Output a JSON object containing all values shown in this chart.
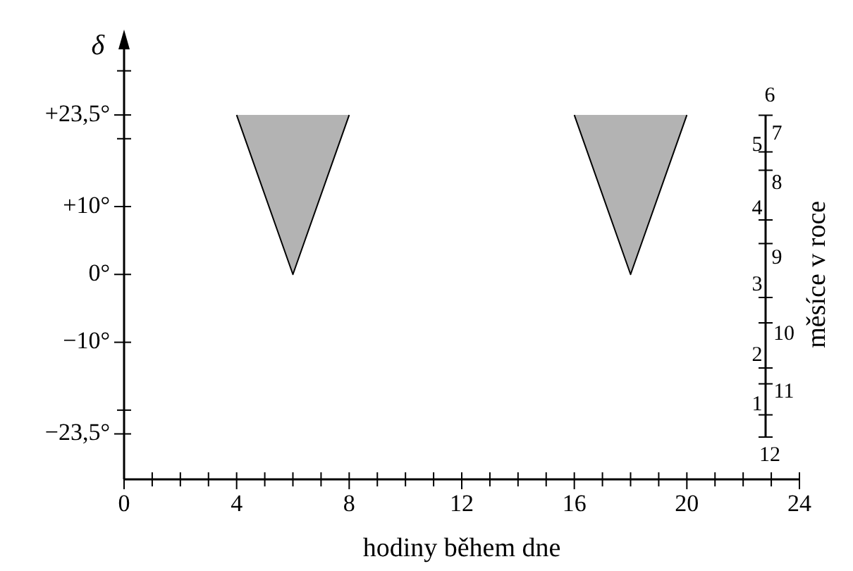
{
  "chart_data": {
    "type": "area",
    "xlabel": "hodiny během dne",
    "ylabel": "δ",
    "xlim": [
      0,
      24
    ],
    "xticks": [
      0,
      {
        "value": 1,
        "label": null
      },
      {
        "value": 2,
        "label": null
      },
      {
        "value": 3,
        "label": null
      },
      4,
      {
        "value": 5,
        "label": null
      },
      {
        "value": 6,
        "label": null
      },
      {
        "value": 7,
        "label": null
      },
      8,
      {
        "value": 9,
        "label": null
      },
      {
        "value": 10,
        "label": null
      },
      {
        "value": 11,
        "label": null
      },
      12,
      {
        "value": 13,
        "label": null
      },
      {
        "value": 14,
        "label": null
      },
      {
        "value": 15,
        "label": null
      },
      16,
      {
        "value": 17,
        "label": null
      },
      {
        "value": 18,
        "label": null
      },
      {
        "value": 19,
        "label": null
      },
      20,
      {
        "value": 21,
        "label": null
      },
      {
        "value": 22,
        "label": null
      },
      {
        "value": 23,
        "label": null
      },
      24
    ],
    "ylim": [
      -30.2,
      34
    ],
    "yticks": [
      {
        "value": 30,
        "label": null
      },
      {
        "value": 23.5,
        "label": "+23,5°"
      },
      {
        "value": 20,
        "label": null
      },
      {
        "value": 10,
        "label": "+10°"
      },
      {
        "value": 0,
        "label": "0°"
      },
      {
        "value": -10,
        "label": "−10°"
      },
      {
        "value": -20,
        "label": null
      },
      {
        "value": -23.5,
        "label": "−23,5°"
      }
    ],
    "annotations": [
      "1",
      "2",
      "3",
      "4",
      "5",
      "6",
      "7",
      "8",
      "9",
      "10",
      "11",
      "12",
      "měsíce v roce"
    ],
    "series": [
      {
        "color": "#b3b3b3",
        "x": [
          4,
          6,
          8
        ],
        "values": [
          23.5,
          0,
          23.5
        ]
      },
      {
        "color": "#b3b3b3",
        "x": [
          16,
          18,
          20
        ],
        "values": [
          23.5,
          0,
          23.5
        ]
      }
    ],
    "grid": false,
    "legend": false,
    "marker": "none",
    "line_style": "solid"
  }
}
